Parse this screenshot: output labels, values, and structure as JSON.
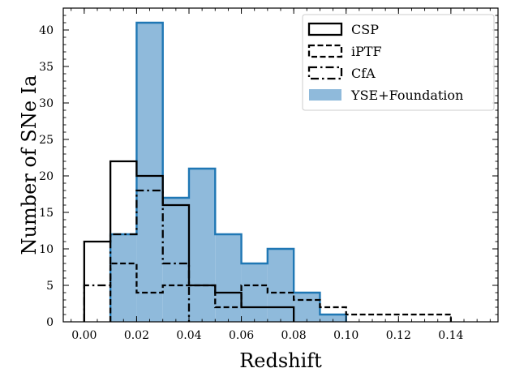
{
  "chart_data": {
    "type": "histogram",
    "xlabel": "Redshift",
    "ylabel": "Number of SNe Ia",
    "xlim": [
      -0.008,
      0.158
    ],
    "ylim": [
      0,
      43
    ],
    "xticks": [
      0.0,
      0.02,
      0.04,
      0.06,
      0.08,
      0.1,
      0.12,
      0.14
    ],
    "xtick_labels": [
      "0.00",
      "0.02",
      "0.04",
      "0.06",
      "0.08",
      "0.10",
      "0.12",
      "0.14"
    ],
    "yticks": [
      0,
      5,
      10,
      15,
      20,
      25,
      30,
      35,
      40
    ],
    "ytick_labels": [
      "0",
      "5",
      "10",
      "15",
      "20",
      "25",
      "30",
      "35",
      "40"
    ],
    "bin_width": 0.01,
    "legend_position": "top-right",
    "series": [
      {
        "name": "YSE+Foundation",
        "style": "filled",
        "fill": "#8fbadb",
        "edge": "#1f77b4",
        "bin_start": 0.01,
        "counts": [
          12,
          41,
          17,
          21,
          12,
          8,
          10,
          4,
          1
        ]
      },
      {
        "name": "CSP",
        "style": "solid",
        "color": "#000000",
        "bin_start": 0.0,
        "counts": [
          11,
          22,
          20,
          16,
          5,
          4,
          2,
          2
        ]
      },
      {
        "name": "iPTF",
        "style": "dashed",
        "color": "#000000",
        "bin_start": 0.01,
        "counts": [
          8,
          4,
          5,
          5,
          2,
          5,
          4,
          3,
          2,
          1,
          1,
          1,
          1
        ]
      },
      {
        "name": "CfA",
        "style": "dashdot",
        "color": "#000000",
        "bin_start": 0.0,
        "counts": [
          5,
          12,
          18,
          8
        ]
      }
    ],
    "legend": [
      {
        "name": "CSP",
        "style": "solid"
      },
      {
        "name": "iPTF",
        "style": "dashed"
      },
      {
        "name": "CfA",
        "style": "dashdot"
      },
      {
        "name": "YSE+Foundation",
        "style": "filled"
      }
    ]
  }
}
